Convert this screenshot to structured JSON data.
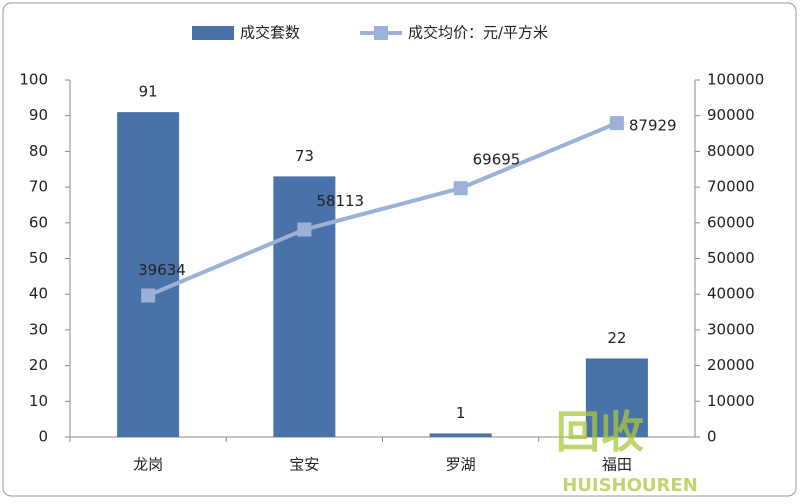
{
  "chart_data": {
    "type": "bar-line",
    "categories": [
      "龙岗",
      "宝安",
      "罗湖",
      "福田"
    ],
    "series": [
      {
        "name": "成交套数",
        "type": "bar",
        "color": "#4a72aa",
        "values": [
          91,
          73,
          1,
          22
        ]
      },
      {
        "name": "成交均价：元/平方米",
        "type": "line",
        "axis": "y2",
        "color": "#9bb1d8",
        "values": [
          39634,
          58113,
          69695,
          87929
        ]
      }
    ],
    "ylim": [
      0,
      100
    ],
    "yticks": [
      0,
      10,
      20,
      30,
      40,
      50,
      60,
      70,
      80,
      90,
      100
    ],
    "y2lim": [
      0,
      100000
    ],
    "y2ticks": [
      0,
      10000,
      20000,
      30000,
      40000,
      50000,
      60000,
      70000,
      80000,
      90000,
      100000
    ],
    "legend": "top",
    "annotations": [
      "回收",
      "HUISHOUREN"
    ]
  }
}
